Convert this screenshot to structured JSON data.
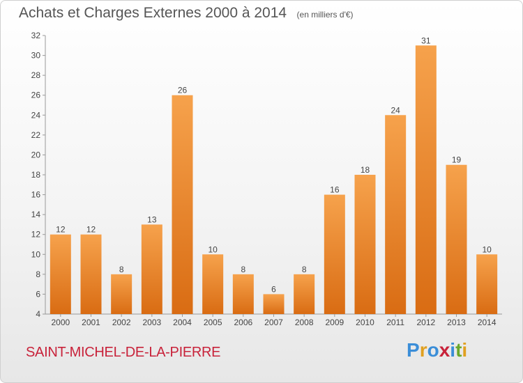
{
  "header": {
    "title": "Achats et Charges Externes 2000 à 2014",
    "unit": "(en milliers d'€)"
  },
  "footer": {
    "commune": "SAINT-MICHEL-DE-LA-PIERRE",
    "logo_text": "Proxiti"
  },
  "colors": {
    "bar_light": "#f6a24c",
    "bar_dark": "#d96c13",
    "commune": "#c8223a",
    "logo": [
      "#3b8ed8",
      "#e0a020",
      "#3b8ed8",
      "#c8223a",
      "#3b8ed8",
      "#6aa82c",
      "#e0a020"
    ]
  },
  "chart_data": {
    "type": "bar",
    "title": "Achats et Charges Externes 2000 à 2014",
    "subtitle": "(en milliers d'€)",
    "categories": [
      "2000",
      "2001",
      "2002",
      "2003",
      "2004",
      "2005",
      "2006",
      "2007",
      "2008",
      "2009",
      "2010",
      "2011",
      "2012",
      "2013",
      "2014"
    ],
    "values": [
      12,
      12,
      8,
      13,
      26,
      10,
      8,
      6,
      8,
      16,
      18,
      24,
      31,
      19,
      10
    ],
    "ylim": [
      4,
      32
    ],
    "yticks": [
      4,
      6,
      8,
      10,
      12,
      14,
      16,
      18,
      20,
      22,
      24,
      26,
      28,
      30,
      32
    ],
    "grid": false,
    "data_labels": true
  }
}
